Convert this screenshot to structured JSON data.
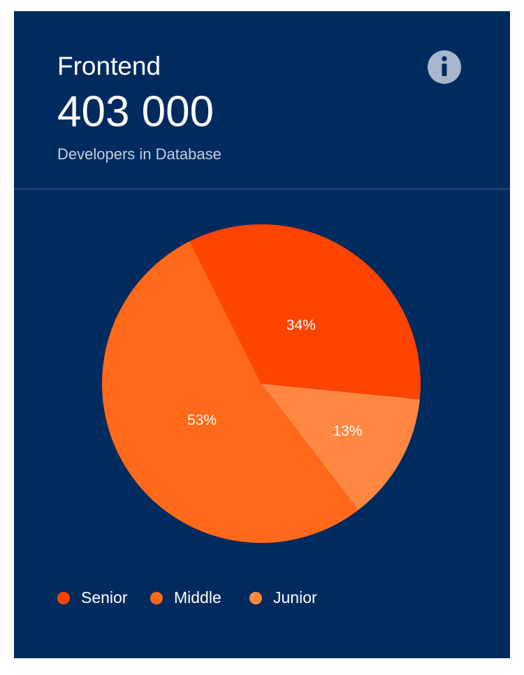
{
  "header": {
    "title": "Frontend",
    "count": "403 000",
    "subtitle": "Developers in Database"
  },
  "chart_data": {
    "type": "pie",
    "categories": [
      "Senior",
      "Middle",
      "Junior"
    ],
    "values": [
      34,
      53,
      13
    ],
    "value_labels": [
      "34%",
      "53%",
      "13%"
    ],
    "colors": [
      "#ff4400",
      "#ff6919",
      "#ff8742"
    ]
  }
}
